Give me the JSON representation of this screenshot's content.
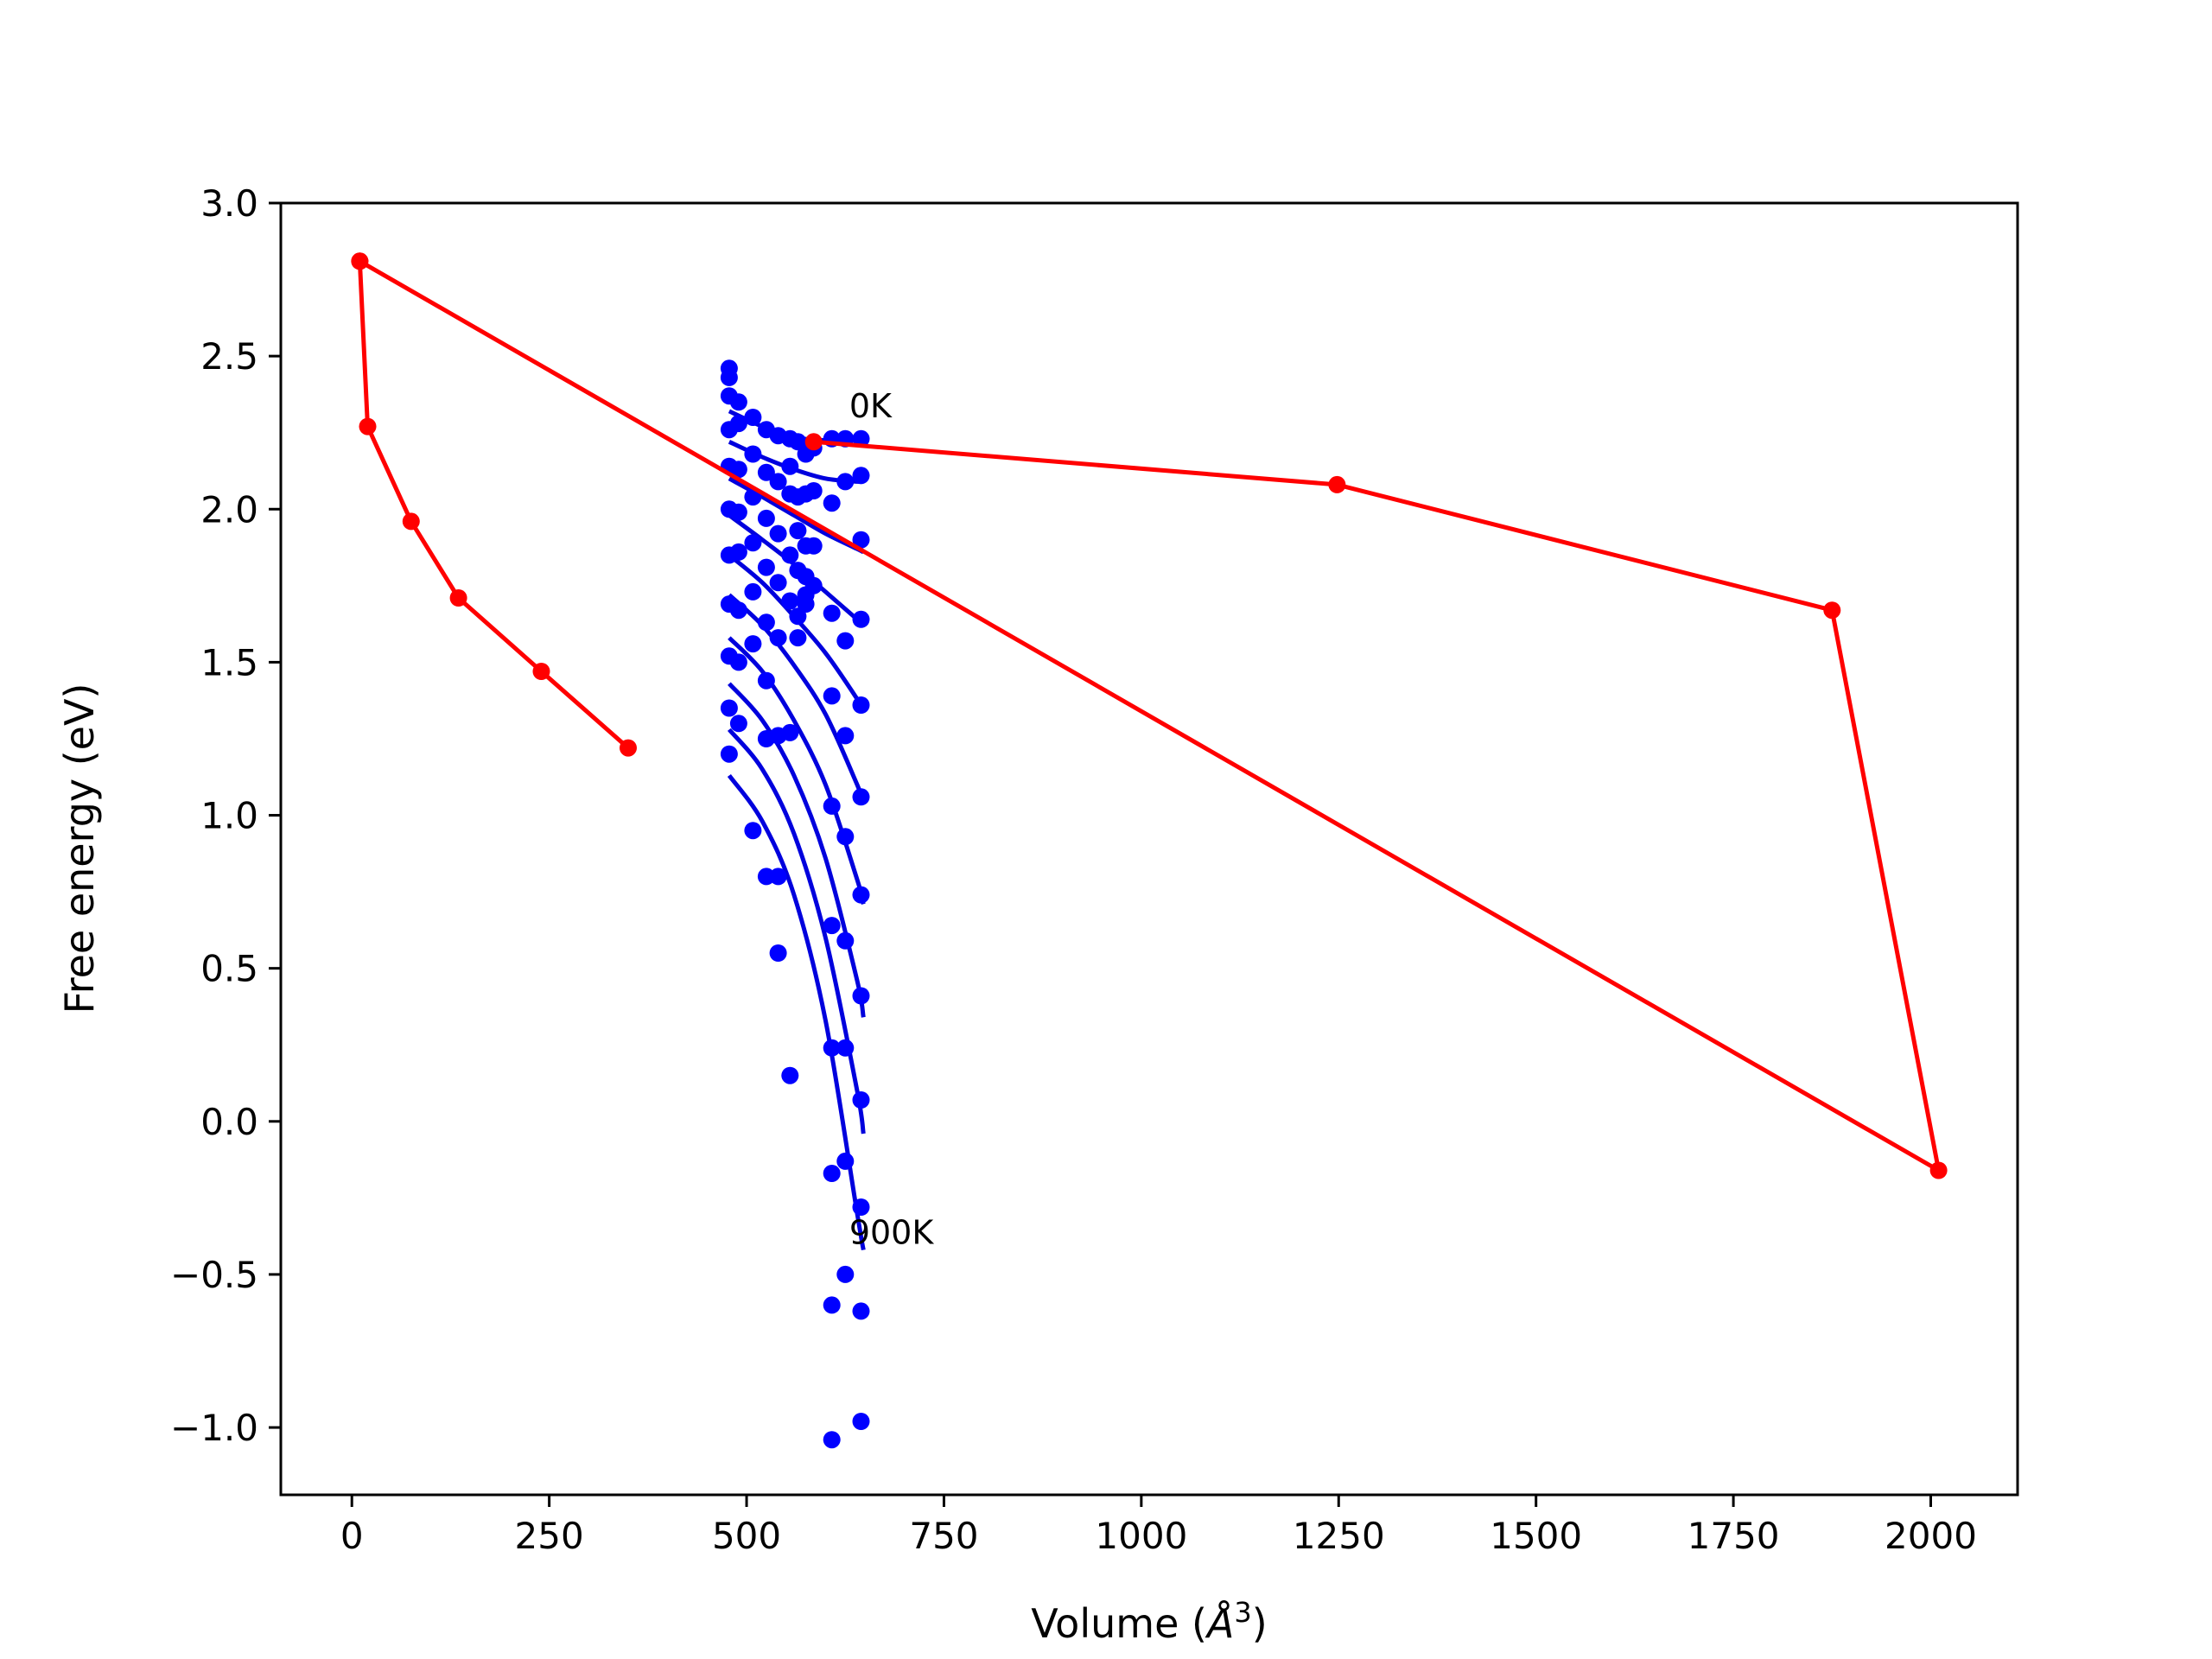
{
  "chart_data": {
    "type": "line",
    "title": "",
    "xlabel": "Volume (Å³)",
    "xlabel_parts": {
      "pre": "Volume (",
      "base": "Å",
      "sup": "3",
      "post": ")"
    },
    "ylabel": "Free energy (eV)",
    "xlim": [
      -90,
      2110
    ],
    "ylim": [
      -1.22,
      3.0
    ],
    "xticks": [
      0,
      250,
      500,
      750,
      1000,
      1250,
      1500,
      1750,
      2000
    ],
    "xtick_labels": [
      "0",
      "250",
      "500",
      "750",
      "1000",
      "1250",
      "1500",
      "1750",
      "2000"
    ],
    "yticks": [
      -1.0,
      -0.5,
      0.0,
      0.5,
      1.0,
      1.5,
      2.0,
      2.5,
      3.0
    ],
    "ytick_labels": [
      "−1.0",
      "−0.5",
      "0.0",
      "0.5",
      "1.0",
      "1.5",
      "2.0",
      "2.5",
      "3.0"
    ],
    "grid": false,
    "legend": "none",
    "colors": {
      "fit": "#0000dd",
      "points": "#0000ff",
      "path": "#ff0000"
    },
    "annotations": [
      {
        "text": "0K",
        "x": 630,
        "y": 2.3
      },
      {
        "text": "900K",
        "x": 630,
        "y": -0.4
      }
    ],
    "fit_curves": [
      {
        "x": [
          478,
          520,
          560,
          600,
          640,
          648
        ],
        "y": [
          2.32,
          2.27,
          2.235,
          2.225,
          2.23,
          2.23
        ]
      },
      {
        "x": [
          478,
          520,
          560,
          600,
          640,
          648
        ],
        "y": [
          2.22,
          2.17,
          2.13,
          2.1,
          2.09,
          2.09
        ]
      },
      {
        "x": [
          478,
          520,
          560,
          600,
          640,
          648
        ],
        "y": [
          2.1,
          2.04,
          1.98,
          1.92,
          1.87,
          1.86
        ]
      },
      {
        "x": [
          478,
          520,
          560,
          600,
          640,
          648
        ],
        "y": [
          1.98,
          1.9,
          1.82,
          1.73,
          1.64,
          1.62
        ]
      },
      {
        "x": [
          478,
          520,
          560,
          600,
          640,
          648
        ],
        "y": [
          1.85,
          1.76,
          1.65,
          1.53,
          1.38,
          1.34
        ]
      },
      {
        "x": [
          478,
          520,
          560,
          600,
          640,
          648
        ],
        "y": [
          1.72,
          1.62,
          1.49,
          1.33,
          1.1,
          1.04
        ]
      },
      {
        "x": [
          478,
          520,
          560,
          600,
          640,
          648
        ],
        "y": [
          1.58,
          1.47,
          1.31,
          1.1,
          0.79,
          0.71
        ]
      },
      {
        "x": [
          478,
          520,
          560,
          600,
          640,
          648
        ],
        "y": [
          1.43,
          1.31,
          1.13,
          0.86,
          0.46,
          0.34
        ]
      },
      {
        "x": [
          478,
          520,
          560,
          600,
          640,
          648
        ],
        "y": [
          1.28,
          1.15,
          0.94,
          0.6,
          0.1,
          -0.04
        ]
      },
      {
        "x": [
          478,
          520,
          560,
          600,
          640,
          648
        ],
        "y": [
          1.13,
          0.98,
          0.74,
          0.33,
          -0.3,
          -0.42
        ]
      }
    ],
    "scatter_points": {
      "x": [
        478,
        478,
        478,
        478,
        478,
        478,
        478,
        478,
        478,
        478,
        478,
        490,
        490,
        490,
        490,
        490,
        490,
        490,
        490,
        508,
        508,
        508,
        508,
        508,
        508,
        508,
        525,
        525,
        525,
        525,
        525,
        525,
        525,
        525,
        540,
        540,
        540,
        540,
        540,
        540,
        540,
        540,
        555,
        555,
        555,
        555,
        555,
        555,
        555,
        565,
        565,
        565,
        565,
        565,
        565,
        575,
        575,
        575,
        575,
        575,
        575,
        585,
        585,
        585,
        585,
        608,
        608,
        608,
        608,
        608,
        608,
        608,
        608,
        608,
        608,
        625,
        625,
        625,
        625,
        625,
        625,
        625,
        625,
        625,
        645,
        645,
        645,
        645,
        645,
        645,
        645,
        645,
        645,
        645,
        645,
        645
      ],
      "y": [
        2.46,
        2.43,
        2.37,
        2.26,
        2.14,
        2.0,
        1.85,
        1.69,
        1.52,
        1.35,
        1.2,
        2.35,
        2.28,
        2.13,
        1.99,
        1.86,
        1.67,
        1.5,
        1.3,
        2.3,
        2.18,
        2.04,
        1.89,
        1.73,
        1.56,
        0.95,
        2.26,
        2.12,
        1.97,
        1.81,
        1.63,
        1.44,
        1.25,
        0.8,
        2.24,
        2.09,
        1.92,
        1.76,
        1.58,
        1.26,
        0.8,
        0.55,
        2.23,
        2.14,
        2.05,
        1.85,
        1.7,
        1.27,
        0.15,
        2.22,
        2.04,
        1.93,
        1.8,
        1.65,
        1.58,
        2.18,
        2.05,
        1.88,
        1.78,
        1.72,
        1.69,
        2.2,
        2.06,
        1.88,
        1.75,
        2.23,
        2.02,
        1.66,
        1.39,
        1.03,
        0.64,
        0.24,
        -0.17,
        -0.6,
        -1.04,
        2.23,
        2.09,
        1.57,
        1.26,
        0.93,
        0.59,
        0.24,
        -0.13,
        -0.5,
        2.23,
        2.11,
        1.9,
        1.64,
        1.36,
        1.06,
        0.74,
        0.41,
        0.07,
        -0.28,
        -0.62,
        -0.98
      ]
    },
    "path_series": [
      {
        "x": [
          10,
          20,
          75,
          135,
          240,
          350
        ],
        "y": [
          2.81,
          2.27,
          1.96,
          1.71,
          1.47,
          1.22
        ]
      },
      {
        "x": [
          10,
          2010,
          1875,
          1248,
          585
        ],
        "y": [
          2.81,
          -0.16,
          1.67,
          2.08,
          2.22
        ]
      }
    ]
  }
}
